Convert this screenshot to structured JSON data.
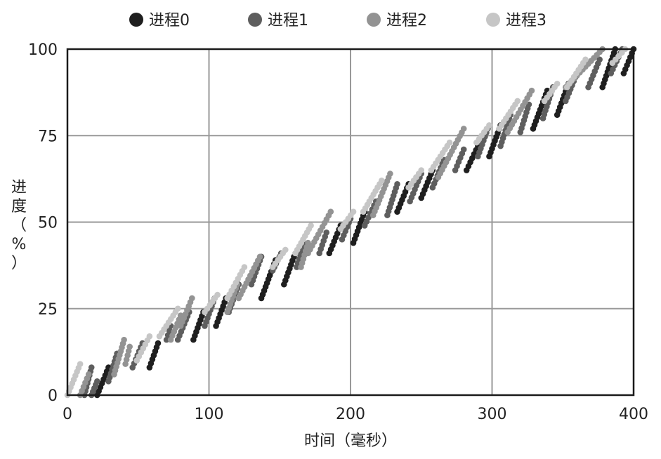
{
  "chart_data": {
    "type": "scatter",
    "title": "",
    "xlabel": "时间（毫秒）",
    "ylabel": "进度（%）",
    "xlim": [
      0,
      400
    ],
    "ylim": [
      0,
      100
    ],
    "x_ticks": [
      0,
      100,
      200,
      300,
      400
    ],
    "y_ticks": [
      0,
      25,
      50,
      75,
      100
    ],
    "grid": true,
    "legend_position": "top",
    "colors": {
      "进程0": "#1f1f1f",
      "进程1": "#5e5e5e",
      "进程2": "#939393",
      "进程3": "#c6c6c6",
      "grid": "#999999",
      "axis": "#1a1a1a"
    },
    "series": [
      {
        "name": "进程0",
        "color": "#1f1f1f",
        "segments": [
          {
            "x": [
              21,
              29
            ],
            "y": [
              0,
              8
            ]
          },
          {
            "x": [
              58,
              64
            ],
            "y": [
              8,
              15
            ]
          },
          {
            "x": [
              89,
              96
            ],
            "y": [
              16,
              24
            ]
          },
          {
            "x": [
              105,
              112
            ],
            "y": [
              20,
              28
            ]
          },
          {
            "x": [
              137,
              147
            ],
            "y": [
              28,
              39
            ]
          },
          {
            "x": [
              153,
              160
            ],
            "y": [
              32,
              40
            ]
          },
          {
            "x": [
              185,
              193
            ],
            "y": [
              41,
              49
            ]
          },
          {
            "x": [
              202,
              210
            ],
            "y": [
              44,
              53
            ]
          },
          {
            "x": [
              233,
              241
            ],
            "y": [
              53,
              61
            ]
          },
          {
            "x": [
              250,
              258
            ],
            "y": [
              57,
              65
            ]
          },
          {
            "x": [
              282,
              290
            ],
            "y": [
              65,
              72
            ]
          },
          {
            "x": [
              298,
              306
            ],
            "y": [
              69,
              78
            ]
          },
          {
            "x": [
              329,
              339
            ],
            "y": [
              77,
              88
            ]
          },
          {
            "x": [
              346,
              354
            ],
            "y": [
              81,
              90
            ]
          },
          {
            "x": [
              378,
              387
            ],
            "y": [
              89,
              100
            ]
          },
          {
            "x": [
              393,
              400
            ],
            "y": [
              93,
              100
            ]
          }
        ]
      },
      {
        "name": "进程1",
        "color": "#5e5e5e",
        "segments": [
          {
            "x": [
              12,
              17
            ],
            "y": [
              0,
              8
            ]
          },
          {
            "x": [
              17,
              21
            ],
            "y": [
              0,
              4
            ]
          },
          {
            "x": [
              29,
              35
            ],
            "y": [
              4,
              12
            ]
          },
          {
            "x": [
              46,
              53
            ],
            "y": [
              8,
              15
            ]
          },
          {
            "x": [
              70,
              73
            ],
            "y": [
              16,
              20
            ]
          },
          {
            "x": [
              78,
              86
            ],
            "y": [
              16,
              24
            ]
          },
          {
            "x": [
              97,
              104
            ],
            "y": [
              20,
              28
            ]
          },
          {
            "x": [
              114,
              121
            ],
            "y": [
              24,
              32
            ]
          },
          {
            "x": [
              130,
              137
            ],
            "y": [
              32,
              40
            ]
          },
          {
            "x": [
              145,
              151
            ],
            "y": [
              36,
              41
            ]
          },
          {
            "x": [
              162,
              167
            ],
            "y": [
              37,
              44
            ]
          },
          {
            "x": [
              178,
              183
            ],
            "y": [
              41,
              47
            ]
          },
          {
            "x": [
              194,
              200
            ],
            "y": [
              45,
              51
            ]
          },
          {
            "x": [
              210,
              218
            ],
            "y": [
              49,
              56
            ]
          },
          {
            "x": [
              226,
              233
            ],
            "y": [
              52,
              61
            ]
          },
          {
            "x": [
              242,
              250
            ],
            "y": [
              56,
              64
            ]
          },
          {
            "x": [
              258,
              266
            ],
            "y": [
              60,
              68
            ]
          },
          {
            "x": [
              274,
              280
            ],
            "y": [
              65,
              71
            ]
          },
          {
            "x": [
              290,
              297
            ],
            "y": [
              69,
              77
            ]
          },
          {
            "x": [
              306,
              313
            ],
            "y": [
              72,
              81
            ]
          },
          {
            "x": [
              320,
              326
            ],
            "y": [
              76,
              84
            ]
          },
          {
            "x": [
              336,
              343
            ],
            "y": [
              80,
              89
            ]
          },
          {
            "x": [
              352,
              360
            ],
            "y": [
              85,
              93
            ]
          },
          {
            "x": [
              368,
              376
            ],
            "y": [
              89,
              97
            ]
          },
          {
            "x": [
              384,
              392
            ],
            "y": [
              93,
              100
            ]
          }
        ]
      },
      {
        "name": "进程2",
        "color": "#939393",
        "segments": [
          {
            "x": [
              9,
              15
            ],
            "y": [
              0,
              6
            ]
          },
          {
            "x": [
              33,
              40
            ],
            "y": [
              6,
              16
            ]
          },
          {
            "x": [
              41,
              44
            ],
            "y": [
              9,
              14
            ]
          },
          {
            "x": [
              73,
              80
            ],
            "y": [
              16,
              23
            ]
          },
          {
            "x": [
              80,
              88
            ],
            "y": [
              20,
              28
            ]
          },
          {
            "x": [
              113,
              120
            ],
            "y": [
              24,
              32
            ]
          },
          {
            "x": [
              121,
              136
            ],
            "y": [
              28,
              40
            ]
          },
          {
            "x": [
              165,
              170
            ],
            "y": [
              37,
              44
            ]
          },
          {
            "x": [
              170,
              186
            ],
            "y": [
              41,
              53
            ]
          },
          {
            "x": [
              216,
              228
            ],
            "y": [
              52,
              64
            ]
          },
          {
            "x": [
              262,
              280
            ],
            "y": [
              63,
              77
            ]
          },
          {
            "x": [
              311,
              328
            ],
            "y": [
              76,
              88
            ]
          },
          {
            "x": [
              352,
              378
            ],
            "y": [
              89,
              100
            ]
          }
        ]
      },
      {
        "name": "进程3",
        "color": "#c6c6c6",
        "segments": [
          {
            "x": [
              0,
              9
            ],
            "y": [
              0,
              9
            ]
          },
          {
            "x": [
              49,
              58
            ],
            "y": [
              10,
              17
            ]
          },
          {
            "x": [
              65,
              78
            ],
            "y": [
              17,
              25
            ]
          },
          {
            "x": [
              97,
              106
            ],
            "y": [
              24,
              29
            ]
          },
          {
            "x": [
              113,
              125
            ],
            "y": [
              28,
              37
            ]
          },
          {
            "x": [
              145,
              154
            ],
            "y": [
              37,
              42
            ]
          },
          {
            "x": [
              161,
              172
            ],
            "y": [
              41,
              49
            ]
          },
          {
            "x": [
              193,
              202
            ],
            "y": [
              48,
              53
            ]
          },
          {
            "x": [
              209,
              222
            ],
            "y": [
              53,
              62
            ]
          },
          {
            "x": [
              241,
              250
            ],
            "y": [
              60,
              65
            ]
          },
          {
            "x": [
              257,
              270
            ],
            "y": [
              65,
              73
            ]
          },
          {
            "x": [
              289,
              298
            ],
            "y": [
              73,
              78
            ]
          },
          {
            "x": [
              305,
              318
            ],
            "y": [
              77,
              85
            ]
          },
          {
            "x": [
              337,
              346
            ],
            "y": [
              85,
              90
            ]
          },
          {
            "x": [
              353,
              366
            ],
            "y": [
              89,
              97
            ]
          },
          {
            "x": [
              385,
              394
            ],
            "y": [
              96,
              100
            ]
          }
        ]
      }
    ]
  }
}
